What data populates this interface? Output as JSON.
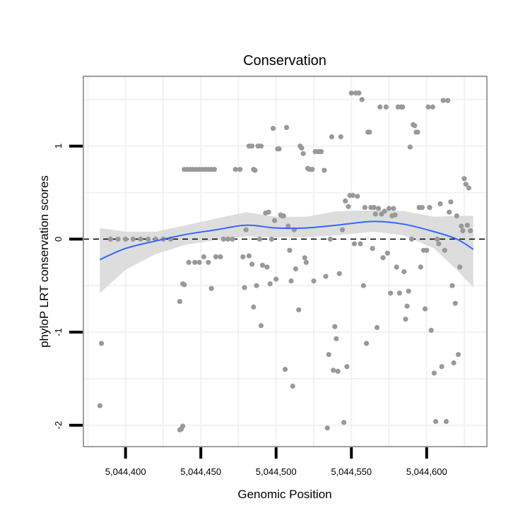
{
  "chart_data": {
    "type": "scatter",
    "title": "Conservation",
    "xlabel": "Genomic Position",
    "ylabel": "phyloP LRT conservation scores",
    "xlim": [
      5044372,
      5044640
    ],
    "ylim": [
      -2.23,
      1.75
    ],
    "xticks": [
      {
        "value": 5044400,
        "label": "5,044,400"
      },
      {
        "value": 5044450,
        "label": "5,044,450"
      },
      {
        "value": 5044500,
        "label": "5,044,500"
      },
      {
        "value": 5044550,
        "label": "5,044,550"
      },
      {
        "value": 5044600,
        "label": "5,044,600"
      }
    ],
    "yticks": [
      {
        "value": -2,
        "label": "-2"
      },
      {
        "value": -1,
        "label": "-1"
      },
      {
        "value": 0,
        "label": "0"
      },
      {
        "value": 1,
        "label": "1"
      }
    ],
    "grid": true,
    "reference_line": {
      "y": 0,
      "style": "dashed"
    },
    "colors": {
      "points": "#999999",
      "smooth": "#3366FF",
      "ribbon": "#D9D9D9",
      "panel_border": "#7F7F7F",
      "grid": "#F2F2F2"
    },
    "points": [
      [
        5044384,
        -1.12
      ],
      [
        5044383,
        -1.79
      ],
      [
        5044390,
        0.0
      ],
      [
        5044395,
        0.0
      ],
      [
        5044400,
        0.0
      ],
      [
        5044405,
        0.0
      ],
      [
        5044410,
        0.0
      ],
      [
        5044415,
        0.0
      ],
      [
        5044420,
        0.0
      ],
      [
        5044425,
        0.0
      ],
      [
        5044430,
        0.0
      ],
      [
        5044436,
        -0.67
      ],
      [
        5044439,
        -0.49
      ],
      [
        5044438,
        -0.48
      ],
      [
        5044436,
        -2.05
      ],
      [
        5044437,
        -2.04
      ],
      [
        5044438,
        -2.01
      ],
      [
        5044439,
        0.75
      ],
      [
        5044441,
        0.75
      ],
      [
        5044443,
        0.75
      ],
      [
        5044445,
        0.75
      ],
      [
        5044447,
        0.75
      ],
      [
        5044449,
        0.75
      ],
      [
        5044451,
        0.75
      ],
      [
        5044453,
        0.75
      ],
      [
        5044455,
        0.75
      ],
      [
        5044457,
        0.75
      ],
      [
        5044459,
        0.75
      ],
      [
        5044442,
        -0.25
      ],
      [
        5044446,
        -0.25
      ],
      [
        5044449,
        -0.25
      ],
      [
        5044452,
        -0.19
      ],
      [
        5044455,
        -0.25
      ],
      [
        5044457,
        -0.53
      ],
      [
        5044460,
        -0.19
      ],
      [
        5044463,
        -0.19
      ],
      [
        5044465,
        0.0
      ],
      [
        5044468,
        0.0
      ],
      [
        5044471,
        0.0
      ],
      [
        5044473,
        0.75
      ],
      [
        5044476,
        0.75
      ],
      [
        5044478,
        -0.19
      ],
      [
        5044480,
        0.1
      ],
      [
        5044482,
        1.0
      ],
      [
        5044484,
        1.0
      ],
      [
        5044485,
        0.75
      ],
      [
        5044486,
        0.74
      ],
      [
        5044479,
        -0.52
      ],
      [
        5044482,
        -0.18
      ],
      [
        5044484,
        -0.27
      ],
      [
        5044485,
        -0.73
      ],
      [
        5044487,
        -0.5
      ],
      [
        5044488,
        1.0
      ],
      [
        5044490,
        1.0
      ],
      [
        5044489,
        0.0
      ],
      [
        5044490,
        -0.93
      ],
      [
        5044491,
        -0.28
      ],
      [
        5044493,
        0.28
      ],
      [
        5044494,
        -0.3
      ],
      [
        5044495,
        0.29
      ],
      [
        5044496,
        -0.48
      ],
      [
        5044497,
        0.0
      ],
      [
        5044498,
        1.19
      ],
      [
        5044499,
        0.2
      ],
      [
        5044500,
        -0.43
      ],
      [
        5044501,
        0.97
      ],
      [
        5044502,
        0.97
      ],
      [
        5044503,
        0.26
      ],
      [
        5044504,
        0.25
      ],
      [
        5044505,
        0.25
      ],
      [
        5044506,
        -1.4
      ],
      [
        5044507,
        1.2
      ],
      [
        5044508,
        0.14
      ],
      [
        5044509,
        -0.12
      ],
      [
        5044510,
        -0.45
      ],
      [
        5044511,
        -1.58
      ],
      [
        5044512,
        0.1
      ],
      [
        5044513,
        -0.32
      ],
      [
        5044515,
        -0.76
      ],
      [
        5044516,
        1.0
      ],
      [
        5044517,
        0.98
      ],
      [
        5044518,
        0.92
      ],
      [
        5044519,
        -0.2
      ],
      [
        5044520,
        -0.25
      ],
      [
        5044521,
        0.76
      ],
      [
        5044522,
        0.75
      ],
      [
        5044523,
        0.75
      ],
      [
        5044524,
        0.75
      ],
      [
        5044525,
        -0.45
      ],
      [
        5044526,
        0.94
      ],
      [
        5044528,
        0.94
      ],
      [
        5044529,
        0.94
      ],
      [
        5044530,
        0.94
      ],
      [
        5044532,
        0.74
      ],
      [
        5044533,
        -0.4
      ],
      [
        5044534,
        -2.03
      ],
      [
        5044535,
        -1.24
      ],
      [
        5044536,
        0.0
      ],
      [
        5044537,
        1.1
      ],
      [
        5044538,
        -1.41
      ],
      [
        5044539,
        -0.94
      ],
      [
        5044540,
        -1.07
      ],
      [
        5044541,
        -1.42
      ],
      [
        5044542,
        -0.37
      ],
      [
        5044543,
        1.1
      ],
      [
        5044544,
        0.1
      ],
      [
        5044545,
        -1.97
      ],
      [
        5044546,
        0.41
      ],
      [
        5044547,
        -1.37
      ],
      [
        5044548,
        0.35
      ],
      [
        5044549,
        0.47
      ],
      [
        5044550,
        1.57
      ],
      [
        5044551,
        0.47
      ],
      [
        5044552,
        -0.05
      ],
      [
        5044553,
        1.57
      ],
      [
        5044554,
        0.46
      ],
      [
        5044555,
        1.57
      ],
      [
        5044556,
        -0.05
      ],
      [
        5044557,
        1.5
      ],
      [
        5044558,
        -0.5
      ],
      [
        5044559,
        0.34
      ],
      [
        5044560,
        -1.12
      ],
      [
        5044561,
        1.15
      ],
      [
        5044562,
        1.15
      ],
      [
        5044563,
        0.34
      ],
      [
        5044564,
        -0.1
      ],
      [
        5044565,
        0.34
      ],
      [
        5044566,
        0.27
      ],
      [
        5044567,
        -0.95
      ],
      [
        5044568,
        0.33
      ],
      [
        5044569,
        1.42
      ],
      [
        5044570,
        0.27
      ],
      [
        5044571,
        -0.2
      ],
      [
        5044572,
        0.3
      ],
      [
        5044573,
        1.42
      ],
      [
        5044574,
        -0.15
      ],
      [
        5044575,
        0.33
      ],
      [
        5044576,
        -0.58
      ],
      [
        5044577,
        0.25
      ],
      [
        5044578,
        0.33
      ],
      [
        5044579,
        0.26
      ],
      [
        5044580,
        -0.3
      ],
      [
        5044581,
        1.42
      ],
      [
        5044582,
        -0.58
      ],
      [
        5044583,
        1.42
      ],
      [
        5044584,
        1.42
      ],
      [
        5044585,
        -0.35
      ],
      [
        5044586,
        -0.86
      ],
      [
        5044587,
        -0.72
      ],
      [
        5044588,
        -0.56
      ],
      [
        5044589,
        0.99
      ],
      [
        5044590,
        0.0
      ],
      [
        5044591,
        1.23
      ],
      [
        5044592,
        1.22
      ],
      [
        5044593,
        1.15
      ],
      [
        5044594,
        1.15
      ],
      [
        5044595,
        0.34
      ],
      [
        5044596,
        -0.3
      ],
      [
        5044597,
        0.34
      ],
      [
        5044598,
        -0.12
      ],
      [
        5044599,
        -0.75
      ],
      [
        5044600,
        -0.12
      ],
      [
        5044601,
        1.42
      ],
      [
        5044602,
        0.34
      ],
      [
        5044603,
        -0.98
      ],
      [
        5044604,
        1.42
      ],
      [
        5044605,
        -1.44
      ],
      [
        5044606,
        -1.96
      ],
      [
        5044607,
        0.0
      ],
      [
        5044608,
        -0.05
      ],
      [
        5044609,
        0.38
      ],
      [
        5044610,
        -1.37
      ],
      [
        5044611,
        1.49
      ],
      [
        5044612,
        -0.12
      ],
      [
        5044613,
        -1.96
      ],
      [
        5044614,
        1.49
      ],
      [
        5044615,
        0.29
      ],
      [
        5044616,
        0.4
      ],
      [
        5044617,
        -0.5
      ],
      [
        5044618,
        -1.33
      ],
      [
        5044619,
        -0.69
      ],
      [
        5044620,
        0.25
      ],
      [
        5044621,
        -1.24
      ],
      [
        5044622,
        -0.3
      ],
      [
        5044623,
        0.14
      ],
      [
        5044624,
        0.09
      ],
      [
        5044625,
        0.65
      ],
      [
        5044626,
        0.59
      ],
      [
        5044627,
        0.15
      ],
      [
        5044628,
        0.55
      ],
      [
        5044629,
        0.09
      ]
    ],
    "smooth": [
      {
        "x": 5044383,
        "y": -0.22,
        "lo": -0.58,
        "hi": 0.12
      },
      {
        "x": 5044400,
        "y": -0.1,
        "lo": -0.33,
        "hi": 0.08
      },
      {
        "x": 5044420,
        "y": -0.02,
        "lo": -0.16,
        "hi": 0.08
      },
      {
        "x": 5044440,
        "y": 0.05,
        "lo": -0.06,
        "hi": 0.15
      },
      {
        "x": 5044460,
        "y": 0.1,
        "lo": -0.01,
        "hi": 0.22
      },
      {
        "x": 5044480,
        "y": 0.15,
        "lo": 0.03,
        "hi": 0.29
      },
      {
        "x": 5044500,
        "y": 0.12,
        "lo": 0.02,
        "hi": 0.24
      },
      {
        "x": 5044520,
        "y": 0.12,
        "lo": 0.02,
        "hi": 0.24
      },
      {
        "x": 5044540,
        "y": 0.15,
        "lo": 0.04,
        "hi": 0.3
      },
      {
        "x": 5044565,
        "y": 0.19,
        "lo": 0.08,
        "hi": 0.31
      },
      {
        "x": 5044585,
        "y": 0.16,
        "lo": 0.04,
        "hi": 0.3
      },
      {
        "x": 5044605,
        "y": 0.08,
        "lo": -0.1,
        "hi": 0.24
      },
      {
        "x": 5044620,
        "y": 0.0,
        "lo": -0.33,
        "hi": 0.25
      },
      {
        "x": 5044631,
        "y": -0.11,
        "lo": -0.52,
        "hi": 0.25
      }
    ]
  }
}
